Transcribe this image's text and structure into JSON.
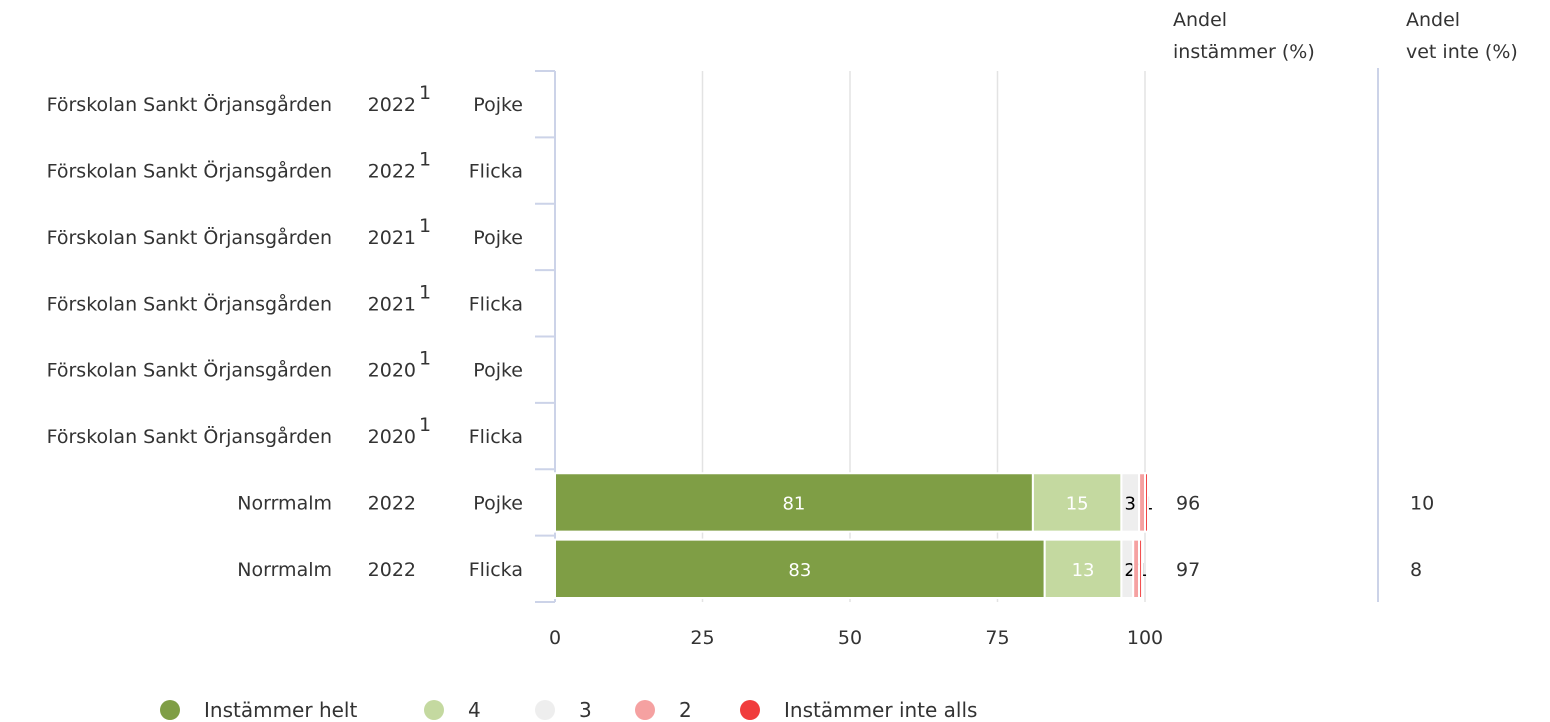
{
  "chart_data": {
    "type": "bar",
    "orientation": "horizontal",
    "stacked": true,
    "title": "",
    "xlabel": "",
    "ylabel": "",
    "xlim": [
      0,
      100
    ],
    "x_ticks": [
      "0",
      "25",
      "50",
      "75",
      "100"
    ],
    "grid": true,
    "legend_position": "bottom",
    "column_headers": {
      "agree": [
        "Andel",
        "instämmer (%)"
      ],
      "dont_know": [
        "Andel",
        "vet inte (%)"
      ]
    },
    "rows": [
      {
        "unit": "Förskolan Sankt Örjansgården",
        "year": "2022",
        "footnote": "1",
        "gender": "Pojke",
        "values": null,
        "agree": "",
        "dont_know": ""
      },
      {
        "unit": "Förskolan Sankt Örjansgården",
        "year": "2022",
        "footnote": "1",
        "gender": "Flicka",
        "values": null,
        "agree": "",
        "dont_know": ""
      },
      {
        "unit": "Förskolan Sankt Örjansgården",
        "year": "2021",
        "footnote": "1",
        "gender": "Pojke",
        "values": null,
        "agree": "",
        "dont_know": ""
      },
      {
        "unit": "Förskolan Sankt Örjansgården",
        "year": "2021",
        "footnote": "1",
        "gender": "Flicka",
        "values": null,
        "agree": "",
        "dont_know": ""
      },
      {
        "unit": "Förskolan Sankt Örjansgården",
        "year": "2020",
        "footnote": "1",
        "gender": "Pojke",
        "values": null,
        "agree": "",
        "dont_know": ""
      },
      {
        "unit": "Förskolan Sankt Örjansgården",
        "year": "2020",
        "footnote": "1",
        "gender": "Flicka",
        "values": null,
        "agree": "",
        "dont_know": ""
      },
      {
        "unit": "Norrmalm",
        "year": "2022",
        "footnote": "",
        "gender": "Pojke",
        "values": [
          81,
          15,
          3,
          1,
          0.5
        ],
        "labels": [
          "81",
          "15",
          "3",
          "1",
          ""
        ],
        "agree": "96",
        "dont_know": "10"
      },
      {
        "unit": "Norrmalm",
        "year": "2022",
        "footnote": "",
        "gender": "Flicka",
        "values": [
          83,
          13,
          2,
          1,
          0.5
        ],
        "labels": [
          "83",
          "13",
          "2",
          "1",
          ""
        ],
        "agree": "97",
        "dont_know": "8"
      }
    ],
    "series": [
      {
        "name": "Instämmer helt",
        "color": "#7f9e45",
        "label_color": "#ffffff"
      },
      {
        "name": "4",
        "color": "#c4d9a0",
        "label_color": "#ffffff"
      },
      {
        "name": "3",
        "color": "#eeeeee",
        "label_color": "#000000"
      },
      {
        "name": "2",
        "color": "#f5a1a1",
        "label_color": "#000000"
      },
      {
        "name": "Instämmer inte alls",
        "color": "#f03c3c",
        "label_color": "#000000"
      }
    ]
  }
}
